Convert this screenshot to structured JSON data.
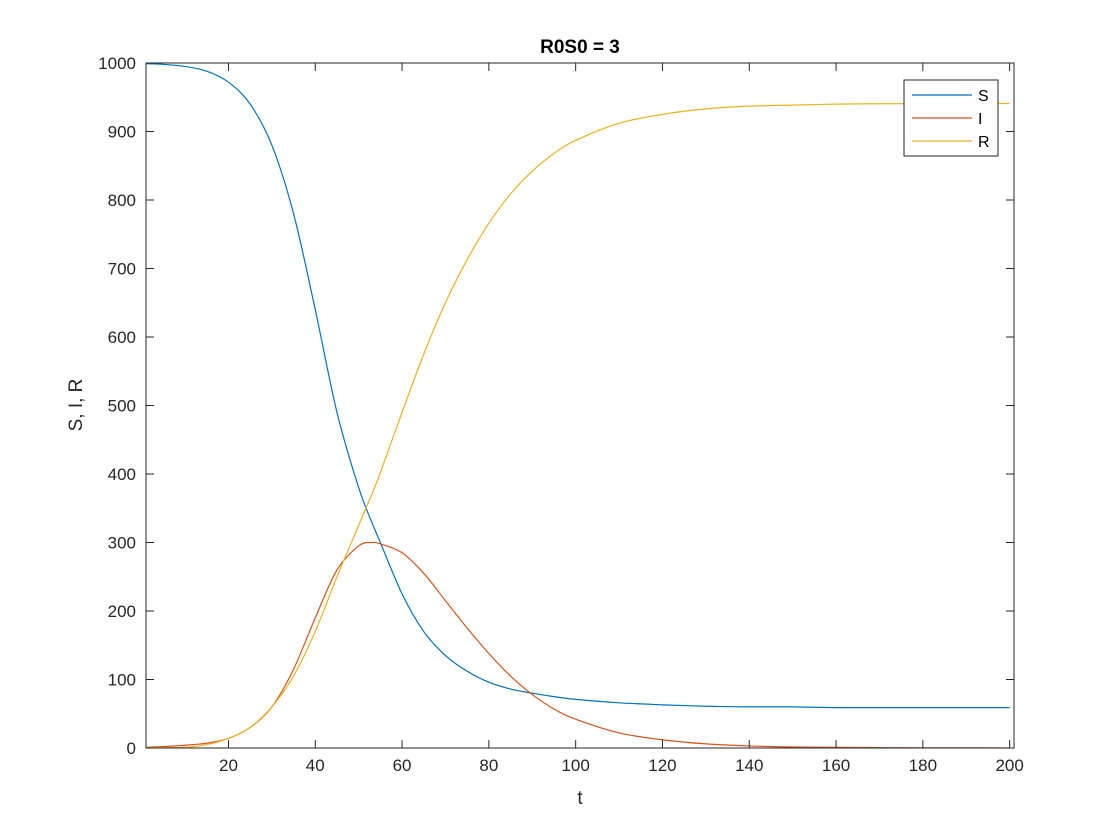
{
  "chart_data": {
    "type": "line",
    "title": "R0S0 = 3",
    "xlabel": "t",
    "ylabel": "S, I, R",
    "xlim": [
      1,
      201
    ],
    "ylim": [
      0,
      1000
    ],
    "xticks": [
      20,
      40,
      60,
      80,
      100,
      120,
      140,
      160,
      180,
      200
    ],
    "yticks": [
      0,
      100,
      200,
      300,
      400,
      500,
      600,
      700,
      800,
      900,
      1000
    ],
    "grid": false,
    "legend_position": "top-right",
    "x": [
      1,
      5,
      10,
      15,
      20,
      25,
      30,
      35,
      40,
      45,
      50,
      53,
      55,
      60,
      65,
      70,
      75,
      80,
      85,
      90,
      95,
      100,
      110,
      120,
      130,
      140,
      150,
      160,
      170,
      180,
      190,
      200
    ],
    "series": [
      {
        "name": "S",
        "color": "#0072BD",
        "values": [
          999,
          998,
          995,
          988,
          972,
          940,
          880,
          780,
          640,
          490,
          380,
          330,
          300,
          225,
          170,
          135,
          112,
          96,
          86,
          80,
          75,
          71,
          66,
          63,
          61,
          60,
          60,
          59,
          59,
          59,
          59,
          59
        ]
      },
      {
        "name": "I",
        "color": "#D95319",
        "values": [
          1,
          2,
          4,
          7,
          14,
          30,
          60,
          115,
          190,
          260,
          295,
          300,
          298,
          285,
          255,
          215,
          175,
          138,
          105,
          78,
          57,
          42,
          22,
          12,
          6,
          3,
          1.5,
          1,
          0.5,
          0.3,
          0.2,
          0.1
        ]
      },
      {
        "name": "R",
        "color": "#EDB120",
        "values": [
          0,
          0.5,
          1,
          5,
          14,
          30,
          60,
          105,
          170,
          250,
          325,
          370,
          402,
          490,
          575,
          650,
          713,
          766,
          809,
          842,
          868,
          887,
          912,
          925,
          933,
          937,
          938.5,
          940,
          940.5,
          940.7,
          940.8,
          940.9
        ]
      }
    ]
  }
}
